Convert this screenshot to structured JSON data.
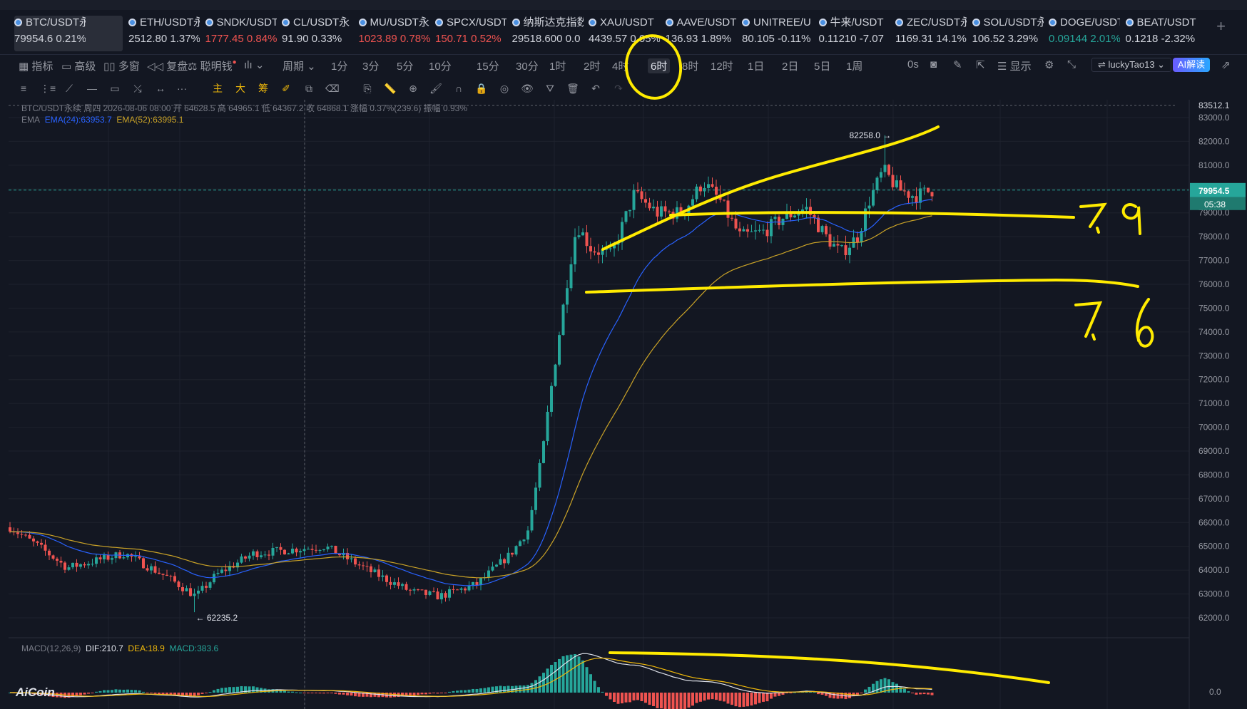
{
  "tickers": [
    {
      "name": "BTC/USDT永续",
      "price": "79954.6",
      "change": "0.21%",
      "color": "#d1d4dc"
    },
    {
      "name": "ETH/USDT永",
      "price": "2512.80",
      "change": "1.37%",
      "color": "#d1d4dc"
    },
    {
      "name": "SNDK/USDT",
      "price": "1777.45",
      "change": "0.84%",
      "color": "#ef5350"
    },
    {
      "name": "CL/USDT永",
      "price": "91.90",
      "change": "0.33%",
      "color": "#d1d4dc"
    },
    {
      "name": "MU/USDT永",
      "price": "1023.89",
      "change": "0.78%",
      "color": "#ef5350"
    },
    {
      "name": "SPCX/USDT",
      "price": "150.71",
      "change": "0.52%",
      "color": "#ef5350"
    },
    {
      "name": "纳斯达克指数...",
      "price": "29518.600",
      "change": "0.0",
      "color": "#d1d4dc"
    },
    {
      "name": "XAU/USDT",
      "price": "4439.57",
      "change": "0.05%",
      "color": "#d1d4dc"
    },
    {
      "name": "AAVE/USDT",
      "price": "136.93",
      "change": "1.89%",
      "color": "#d1d4dc"
    },
    {
      "name": "UNITREE/U",
      "price": "80.105",
      "change": "-0.11%",
      "color": "#d1d4dc"
    },
    {
      "name": "牛来/USDT",
      "price": "0.11210",
      "change": "-7.07",
      "color": "#d1d4dc"
    },
    {
      "name": "ZEC/USDT永",
      "price": "1169.31",
      "change": "14.1%",
      "color": "#d1d4dc"
    },
    {
      "name": "SOL/USDT永",
      "price": "106.52",
      "change": "3.29%",
      "color": "#d1d4dc"
    },
    {
      "name": "DOGE/USDT",
      "price": "0.09144",
      "change": "2.01%",
      "color": "#26a69a"
    },
    {
      "name": "BEAT/USDT",
      "price": "0.1218",
      "change": "-2.32%",
      "color": "#d1d4dc"
    }
  ],
  "toolbar": {
    "indicators": "指标",
    "advanced": "高级",
    "multi": "多窗",
    "replay": "复盘",
    "smart": "聪明钱",
    "period": "周期",
    "timeframes": [
      "1分",
      "3分",
      "5分",
      "10分",
      "15分",
      "30分",
      "1时",
      "2时",
      "4时",
      "6时",
      "8时",
      "12时",
      "1日",
      "2日",
      "5日",
      "1周"
    ],
    "active_tf": "6时",
    "seconds": "0s",
    "display": "显示",
    "user": "luckyTao13",
    "ai": "AI解读"
  },
  "legend": {
    "symbol_line": "BTC/USDT永续 周四 2026-08-06 08:00 开 64628.5 高 64965.1 低 64367.2 收 64868.1 涨幅 0.37%(239.6) 振幅 0.93%",
    "ema_label": "EMA",
    "ema24": "EMA(24):63953.7",
    "ema52": "EMA(52):63995.1",
    "macd_label": "MACD(12,26,9)",
    "dif": "DIF:210.7",
    "dea": "DEA:18.9",
    "macd": "MACD:383.6"
  },
  "price_axis": [
    "83000.0",
    "82000.0",
    "81000.0",
    "80000.0",
    "79000.0",
    "78000.0",
    "77000.0",
    "76000.0",
    "75000.0",
    "74000.0",
    "73000.0",
    "72000.0",
    "71000.0",
    "70000.0",
    "69000.0",
    "68000.0",
    "67000.0",
    "66000.0",
    "65000.0",
    "64000.0",
    "63000.0",
    "62000.0"
  ],
  "top_price": "83512.1",
  "current_price": "79954.5",
  "countdown": "05:38",
  "macd_zero": "0.0",
  "annotations": {
    "high": "82258.0",
    "low": "62235.2",
    "hand1": "7.9",
    "hand2": "7.6"
  },
  "logo": "AiCoin",
  "colors": {
    "up": "#26a69a",
    "down": "#ef5350",
    "ema24": "#2962ff",
    "ema52": "#c9a227",
    "marker": "#ffeb00"
  }
}
